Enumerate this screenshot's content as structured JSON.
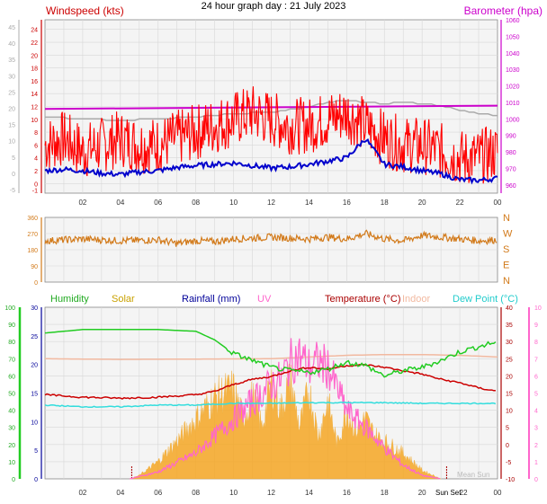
{
  "title": "24 hour graph day : 21 July 2023",
  "colors": {
    "wind": "#ff0000",
    "windGust": "#ff0000",
    "windAvg": "#0000cc",
    "baro": "#cc00cc",
    "baroLabel": "#cc00cc",
    "grey": "#aaaaaa",
    "dir": "#d27a1a",
    "humidity": "#22cc22",
    "solar": "#f5a623",
    "solarMax": "#f7c97a",
    "rain": "#000099",
    "uv": "#ff66cc",
    "temp": "#cc0000",
    "indoor": "#f2b9a0",
    "dew": "#33dddd",
    "sun": "#aa0000",
    "grid": "#d7d7d7",
    "plotBg": "#f4f4f4"
  },
  "chart_data": [
    {
      "type": "line",
      "name": "wind-baro",
      "labels": {
        "wind": "Windspeed (kts)",
        "baro": "Barometer (hpa)"
      },
      "x_ticks": [
        "02",
        "04",
        "06",
        "08",
        "10",
        "12",
        "14",
        "16",
        "18",
        "20",
        "22",
        "00"
      ],
      "left_outer_ticks": [
        "-5",
        "0",
        "5",
        "10",
        "15",
        "20",
        "25",
        "30",
        "35",
        "40",
        "45"
      ],
      "left_inner_ticks": [
        "-1",
        "0",
        "2",
        "4",
        "6",
        "8",
        "10",
        "12",
        "14",
        "16",
        "18",
        "20",
        "22",
        "24"
      ],
      "right_ticks": [
        "960",
        "970",
        "980",
        "990",
        "1000",
        "1010",
        "1020",
        "1030",
        "1040",
        "1050",
        "1060"
      ],
      "ylim_kts": [
        -1.5,
        25.5
      ],
      "ylim_hpa": [
        955,
        1060
      ],
      "series": [
        {
          "key": "gust",
          "x": [
            0,
            1,
            2,
            3,
            4,
            5,
            6,
            7,
            8,
            9,
            10,
            11,
            12,
            13,
            14,
            15,
            16,
            17,
            18,
            19,
            20,
            21,
            22,
            23,
            24
          ],
          "y": [
            6,
            7,
            5,
            6,
            7,
            6,
            6,
            7,
            8,
            9,
            10,
            11,
            10,
            9,
            9,
            10,
            11,
            9,
            7,
            6,
            6,
            5,
            4,
            4,
            5
          ]
        },
        {
          "key": "avg",
          "x": [
            0,
            1,
            2,
            3,
            4,
            5,
            6,
            7,
            8,
            9,
            10,
            11,
            12,
            13,
            14,
            15,
            16,
            17,
            18,
            19,
            20,
            21,
            22,
            23,
            24
          ],
          "y": [
            2,
            2.2,
            2,
            1.6,
            1.4,
            1.8,
            2,
            2.5,
            2.8,
            3,
            3.2,
            2.8,
            2.4,
            2.6,
            3,
            3.5,
            4,
            7,
            3,
            2.6,
            2,
            1.5,
            0.6,
            0.5,
            0.8
          ]
        },
        {
          "key": "baro",
          "x": [
            0,
            24
          ],
          "y": [
            1006,
            1008
          ]
        },
        {
          "key": "grey",
          "x": [
            0,
            4,
            8,
            10,
            12,
            14,
            15,
            16,
            17,
            18,
            19,
            20,
            21,
            22,
            23,
            24
          ],
          "y": [
            1001,
            999,
            1001,
            1003,
            1004,
            1007,
            1010,
            1011,
            1010,
            1009,
            1010,
            1009,
            1008,
            1005,
            1003,
            1002
          ]
        }
      ]
    },
    {
      "type": "line",
      "name": "wind-direction",
      "left_ticks": [
        "360",
        "270",
        "180",
        "90",
        "0"
      ],
      "right_ticks": [
        "N",
        "W",
        "S",
        "E",
        "N"
      ],
      "ylim": [
        0,
        360
      ],
      "series": [
        {
          "key": "dir",
          "x": [
            0,
            2,
            4,
            6,
            7,
            8,
            9,
            10,
            12,
            14,
            15,
            16,
            17,
            18,
            19,
            20,
            22,
            23,
            24
          ],
          "y": [
            230,
            240,
            230,
            235,
            215,
            230,
            225,
            240,
            250,
            240,
            250,
            240,
            270,
            240,
            230,
            260,
            240,
            230,
            235
          ]
        }
      ]
    },
    {
      "type": "line",
      "name": "temp-humidity-solar",
      "labels": {
        "humidity": "Humidity",
        "solar": "Solar",
        "rain": "Rainfall (mm)",
        "uv": "UV",
        "temp": "Temperature (°C)",
        "indoor": "Indoor",
        "dew": "Dew Point (°C)",
        "sunrise": "",
        "sunset": "Sun Set",
        "mean": "Mean Sun"
      },
      "x_ticks": [
        "02",
        "04",
        "06",
        "08",
        "10",
        "12",
        "14",
        "16",
        "18",
        "20",
        "22",
        "00"
      ],
      "humidity_ticks": [
        "0",
        "10",
        "20",
        "30",
        "40",
        "50",
        "60",
        "70",
        "80",
        "90",
        "100"
      ],
      "rain_ticks": [
        "0",
        "5",
        "10",
        "15",
        "20",
        "25",
        "30"
      ],
      "temp_ticks": [
        "-10",
        "-5",
        "0",
        "5",
        "10",
        "15",
        "20",
        "25",
        "30",
        "35",
        "40"
      ],
      "uv_ticks": [
        "0",
        "1",
        "2",
        "3",
        "4",
        "5",
        "6",
        "7",
        "8",
        "9",
        "10"
      ],
      "ylim_temp": [
        -10,
        40
      ],
      "ylim_hum": [
        0,
        100
      ],
      "sunrise_hour": 4.6,
      "sunset_hour": 21.3,
      "series": [
        {
          "key": "humidity",
          "x": [
            0,
            1,
            2,
            4,
            6,
            8,
            9,
            10,
            11,
            12,
            13,
            14,
            15,
            16,
            17,
            18,
            19,
            20,
            21,
            22,
            23,
            24
          ],
          "y": [
            85,
            86,
            87,
            87,
            87,
            86,
            81,
            73,
            69,
            65,
            63,
            62,
            64,
            68,
            66,
            60,
            63,
            65,
            69,
            74,
            77,
            80
          ]
        },
        {
          "key": "temp",
          "x": [
            0,
            2,
            4,
            6,
            8,
            9,
            10,
            11,
            12,
            13,
            14,
            15,
            16,
            17,
            18,
            19,
            20,
            21,
            22,
            23,
            24
          ],
          "y": [
            14.5,
            13.8,
            13.5,
            13.8,
            14.5,
            15.5,
            17.5,
            19,
            19.8,
            21.5,
            22.5,
            22,
            23,
            23.2,
            22.5,
            21.5,
            20.5,
            19,
            18,
            16.5,
            15.5
          ]
        },
        {
          "key": "indoor",
          "x": [
            0,
            4,
            8,
            12,
            14,
            16,
            18,
            20,
            22,
            24
          ],
          "y": [
            25,
            24.8,
            24.9,
            25,
            25.5,
            26,
            26.2,
            26.2,
            26,
            25.5
          ]
        },
        {
          "key": "dew",
          "x": [
            0,
            2,
            4,
            6,
            8,
            10,
            12,
            14,
            16,
            18,
            20,
            22,
            24
          ],
          "y": [
            11.5,
            11,
            11,
            11.5,
            11.5,
            12,
            12,
            12.2,
            12.2,
            12.2,
            12,
            12,
            12
          ]
        },
        {
          "key": "solar",
          "x": [
            4.5,
            5,
            6,
            7,
            8,
            9,
            9.5,
            10,
            10.5,
            11,
            11.5,
            12,
            12.5,
            13,
            13.5,
            14,
            14.5,
            15,
            15.5,
            16,
            16.5,
            17,
            17.5,
            18,
            19,
            20,
            21
          ],
          "y": [
            0,
            2,
            10,
            22,
            35,
            47,
            50,
            52,
            35,
            48,
            30,
            55,
            40,
            58,
            30,
            52,
            25,
            45,
            20,
            40,
            28,
            35,
            25,
            22,
            15,
            5,
            0
          ]
        },
        {
          "key": "uv",
          "x": [
            4.5,
            6,
            8,
            9,
            10,
            11,
            12,
            12.5,
            13,
            13.5,
            14,
            14.5,
            15,
            16,
            17,
            18,
            19,
            20,
            21
          ],
          "y": [
            0,
            0.4,
            1.5,
            2.5,
            3.5,
            4.5,
            5.5,
            5.8,
            6.8,
            7.2,
            6.5,
            6.8,
            6.5,
            4,
            3,
            1.8,
            0.8,
            0.2,
            0
          ]
        }
      ]
    }
  ]
}
